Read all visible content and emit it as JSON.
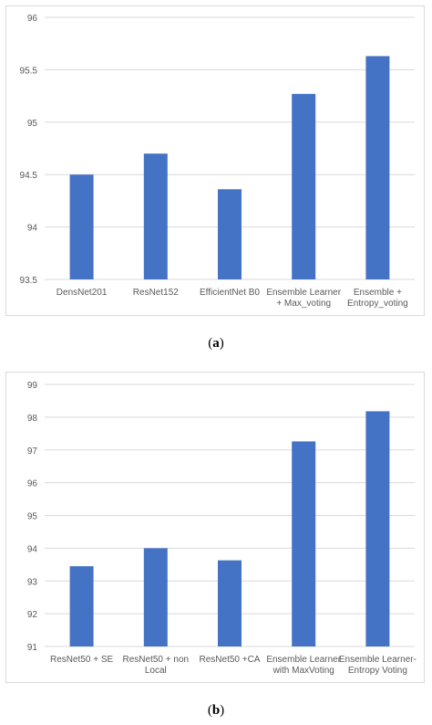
{
  "charts": [
    {
      "caption_open": "(",
      "caption_letter": "a",
      "caption_close": ")",
      "colors": {
        "bar": "#4472c4",
        "grid": "#d9d9d9"
      },
      "chart_data": {
        "type": "bar",
        "categories": [
          [
            "DensNet201"
          ],
          [
            "ResNet152"
          ],
          [
            "EfficientNet B0"
          ],
          [
            "Ensemble Learner",
            "+ Max_voting"
          ],
          [
            "Ensemble +",
            "Entropy_voting"
          ]
        ],
        "values": [
          94.5,
          94.7,
          94.36,
          95.27,
          95.63
        ],
        "ylim": [
          93.5,
          96
        ],
        "yticks": [
          "93.5",
          "94",
          "94.5",
          "95",
          "95.5",
          "96"
        ],
        "grid": true,
        "title": "",
        "xlabel": "",
        "ylabel": ""
      }
    },
    {
      "caption_open": "(",
      "caption_letter": "b",
      "caption_close": ")",
      "colors": {
        "bar": "#4472c4",
        "grid": "#d9d9d9"
      },
      "chart_data": {
        "type": "bar",
        "categories": [
          [
            "ResNet50 + SE"
          ],
          [
            "ResNet50 + non",
            "Local"
          ],
          [
            "ResNet50 +CA"
          ],
          [
            "Ensemble Learner",
            "with MaxVoting"
          ],
          [
            "Ensemble Learner-",
            "Entropy Voting"
          ]
        ],
        "values": [
          93.45,
          94.0,
          93.63,
          97.26,
          98.18
        ],
        "ylim": [
          91,
          99
        ],
        "yticks": [
          "91",
          "92",
          "93",
          "94",
          "95",
          "96",
          "97",
          "98",
          "99"
        ],
        "grid": true,
        "title": "",
        "xlabel": "",
        "ylabel": ""
      }
    }
  ]
}
